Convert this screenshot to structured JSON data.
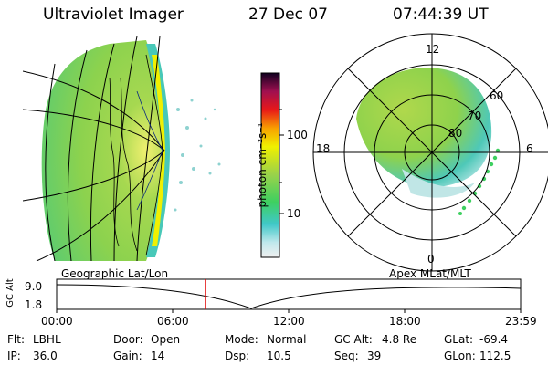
{
  "header": {
    "instrument": "Ultraviolet Imager",
    "date": "27 Dec 07",
    "time": "07:44:39 UT"
  },
  "colorbar": {
    "unit_label": "photon cm⁻²s⁻¹",
    "ticks": [
      "100",
      "10"
    ]
  },
  "polar_plot": {
    "mlt_labels": {
      "top": "12",
      "right": "6",
      "left": "18",
      "bottom": "0"
    },
    "lat_labels": [
      "80",
      "70",
      "60"
    ]
  },
  "left_plot_label": "Geographic Lat/Lon",
  "right_plot_label": "Apex MLat/MLT",
  "altitude_plot": {
    "ylabel": "GC Alt",
    "yticks": [
      "9.0",
      "1.8"
    ],
    "xticks": [
      "00:00",
      "06:00",
      "12:00",
      "18:00",
      "23:59"
    ],
    "marker_time": "07:44"
  },
  "status": {
    "row1": [
      {
        "label": "Flt:",
        "value": "LBHL"
      },
      {
        "label": "Door:",
        "value": "Open"
      },
      {
        "label": "Mode:",
        "value": "Normal"
      },
      {
        "label": "GC Alt:",
        "value": "4.8 Re"
      },
      {
        "label": "GLat:",
        "value": "-69.4"
      }
    ],
    "row2": [
      {
        "label": "IP:",
        "value": "36.0"
      },
      {
        "label": "Gain:",
        "value": "14"
      },
      {
        "label": "Dsp:",
        "value": "10.5"
      },
      {
        "label": "Seq:",
        "value": "39"
      },
      {
        "label": "GLon:",
        "value": "112.5"
      }
    ]
  },
  "colors": {
    "marker": "#e00000",
    "image_main": "#9ad24a",
    "image_edge": "#3ec8c0",
    "image_bright": "#f0f000"
  }
}
